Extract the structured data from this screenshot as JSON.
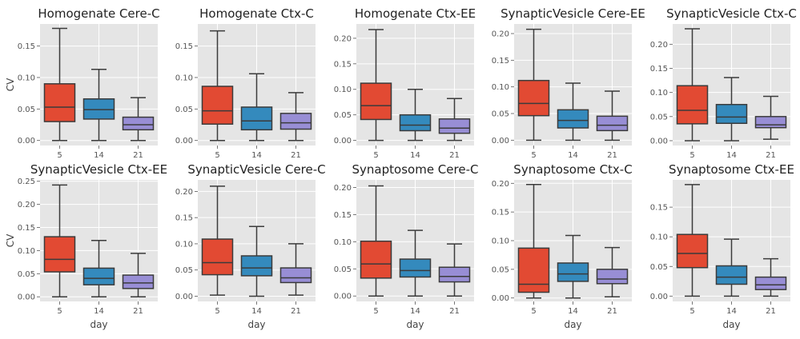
{
  "colors": {
    "day5": "#E24A33",
    "day14": "#348ABD",
    "day21": "#988ED5",
    "panel_bg": "#E5E5E5",
    "grid": "#FFFFFF",
    "whisker": "#3B3B3B"
  },
  "chart_data": [
    {
      "type": "box",
      "title": "Homogenate Cere-C",
      "xlabel": "",
      "ylabel": "CV",
      "categories": [
        "5",
        "14",
        "21"
      ],
      "ylim": [
        -0.008,
        0.185
      ],
      "yticks": [
        "0.00",
        "0.05",
        "0.10",
        "0.15"
      ],
      "boxes": [
        {
          "min": 0.0,
          "q1": 0.03,
          "median": 0.053,
          "q3": 0.09,
          "max": 0.178
        },
        {
          "min": 0.0,
          "q1": 0.034,
          "median": 0.049,
          "q3": 0.066,
          "max": 0.113
        },
        {
          "min": 0.0,
          "q1": 0.017,
          "median": 0.025,
          "q3": 0.037,
          "max": 0.068
        }
      ]
    },
    {
      "type": "box",
      "title": "Homogenate Ctx-C",
      "xlabel": "",
      "ylabel": "",
      "categories": [
        "5",
        "14",
        "21"
      ],
      "ylim": [
        -0.008,
        0.185
      ],
      "yticks": [
        "0.00",
        "0.05",
        "0.10",
        "0.15"
      ],
      "boxes": [
        {
          "min": 0.0,
          "q1": 0.026,
          "median": 0.047,
          "q3": 0.086,
          "max": 0.174
        },
        {
          "min": 0.0,
          "q1": 0.017,
          "median": 0.031,
          "q3": 0.053,
          "max": 0.106
        },
        {
          "min": 0.0,
          "q1": 0.018,
          "median": 0.028,
          "q3": 0.043,
          "max": 0.076
        }
      ]
    },
    {
      "type": "box",
      "title": "Homogenate Ctx-EE",
      "xlabel": "",
      "ylabel": "",
      "categories": [
        "5",
        "14",
        "21"
      ],
      "ylim": [
        -0.01,
        0.228
      ],
      "yticks": [
        "0.00",
        "0.05",
        "0.10",
        "0.15",
        "0.20"
      ],
      "boxes": [
        {
          "min": 0.0,
          "q1": 0.041,
          "median": 0.068,
          "q3": 0.112,
          "max": 0.217
        },
        {
          "min": 0.0,
          "q1": 0.019,
          "median": 0.03,
          "q3": 0.05,
          "max": 0.1
        },
        {
          "min": 0.0,
          "q1": 0.014,
          "median": 0.024,
          "q3": 0.042,
          "max": 0.082
        }
      ]
    },
    {
      "type": "box",
      "title": "SynapticVesicle Cere-EE",
      "xlabel": "",
      "ylabel": "",
      "categories": [
        "5",
        "14",
        "21"
      ],
      "ylim": [
        -0.01,
        0.218
      ],
      "yticks": [
        "0.00",
        "0.05",
        "0.10",
        "0.15",
        "0.20"
      ],
      "boxes": [
        {
          "min": 0.0,
          "q1": 0.046,
          "median": 0.069,
          "q3": 0.112,
          "max": 0.208
        },
        {
          "min": 0.0,
          "q1": 0.023,
          "median": 0.037,
          "q3": 0.057,
          "max": 0.107
        },
        {
          "min": 0.0,
          "q1": 0.018,
          "median": 0.028,
          "q3": 0.045,
          "max": 0.092
        }
      ]
    },
    {
      "type": "box",
      "title": "SynapticVesicle Ctx-C",
      "xlabel": "",
      "ylabel": "",
      "categories": [
        "5",
        "14",
        "21"
      ],
      "ylim": [
        -0.01,
        0.242
      ],
      "yticks": [
        "0.00",
        "0.05",
        "0.10",
        "0.15",
        "0.20"
      ],
      "boxes": [
        {
          "min": 0.0,
          "q1": 0.035,
          "median": 0.063,
          "q3": 0.114,
          "max": 0.232
        },
        {
          "min": 0.0,
          "q1": 0.036,
          "median": 0.049,
          "q3": 0.075,
          "max": 0.131
        },
        {
          "min": 0.003,
          "q1": 0.027,
          "median": 0.033,
          "q3": 0.05,
          "max": 0.092
        }
      ]
    },
    {
      "type": "box",
      "title": "SynapticVesicle Ctx-EE",
      "xlabel": "day",
      "ylabel": "CV",
      "categories": [
        "5",
        "14",
        "21"
      ],
      "ylim": [
        -0.01,
        0.253
      ],
      "yticks": [
        "0.00",
        "0.05",
        "0.10",
        "0.15",
        "0.20",
        "0.25"
      ],
      "boxes": [
        {
          "min": 0.0,
          "q1": 0.054,
          "median": 0.081,
          "q3": 0.13,
          "max": 0.242
        },
        {
          "min": 0.0,
          "q1": 0.026,
          "median": 0.04,
          "q3": 0.062,
          "max": 0.122
        },
        {
          "min": 0.0,
          "q1": 0.018,
          "median": 0.03,
          "q3": 0.047,
          "max": 0.094
        }
      ]
    },
    {
      "type": "box",
      "title": "SynapticVesicle Cere-C",
      "xlabel": "day",
      "ylabel": "",
      "categories": [
        "5",
        "14",
        "21"
      ],
      "ylim": [
        -0.01,
        0.222
      ],
      "yticks": [
        "0.00",
        "0.05",
        "0.10",
        "0.15",
        "0.20"
      ],
      "boxes": [
        {
          "min": 0.002,
          "q1": 0.041,
          "median": 0.064,
          "q3": 0.109,
          "max": 0.21
        },
        {
          "min": 0.0,
          "q1": 0.039,
          "median": 0.054,
          "q3": 0.077,
          "max": 0.133
        },
        {
          "min": 0.002,
          "q1": 0.026,
          "median": 0.035,
          "q3": 0.054,
          "max": 0.1
        }
      ]
    },
    {
      "type": "box",
      "title": "Synaptosome Cere-C",
      "xlabel": "day",
      "ylabel": "",
      "categories": [
        "5",
        "14",
        "21"
      ],
      "ylim": [
        -0.01,
        0.214
      ],
      "yticks": [
        "0.00",
        "0.05",
        "0.10",
        "0.15",
        "0.20"
      ],
      "boxes": [
        {
          "min": 0.0,
          "q1": 0.033,
          "median": 0.059,
          "q3": 0.101,
          "max": 0.203
        },
        {
          "min": 0.0,
          "q1": 0.035,
          "median": 0.047,
          "q3": 0.068,
          "max": 0.121
        },
        {
          "min": 0.0,
          "q1": 0.026,
          "median": 0.036,
          "q3": 0.053,
          "max": 0.096
        }
      ]
    },
    {
      "type": "box",
      "title": "Synaptosome Ctx-C",
      "xlabel": "day",
      "ylabel": "",
      "categories": [
        "5",
        "14",
        "21"
      ],
      "ylim": [
        -0.006,
        0.206
      ],
      "yticks": [
        "0.00",
        "0.05",
        "0.10",
        "0.15",
        "0.20"
      ],
      "boxes": [
        {
          "min": 0.0,
          "q1": 0.01,
          "median": 0.024,
          "q3": 0.087,
          "max": 0.198
        },
        {
          "min": 0.0,
          "q1": 0.029,
          "median": 0.042,
          "q3": 0.061,
          "max": 0.109
        },
        {
          "min": 0.002,
          "q1": 0.025,
          "median": 0.033,
          "q3": 0.05,
          "max": 0.088
        }
      ]
    },
    {
      "type": "box",
      "title": "Synaptosome Ctx-EE",
      "xlabel": "day",
      "ylabel": "",
      "categories": [
        "5",
        "14",
        "21"
      ],
      "ylim": [
        -0.009,
        0.196
      ],
      "yticks": [
        "0.00",
        "0.05",
        "0.10",
        "0.15"
      ],
      "boxes": [
        {
          "min": 0.0,
          "q1": 0.048,
          "median": 0.072,
          "q3": 0.104,
          "max": 0.188
        },
        {
          "min": 0.0,
          "q1": 0.02,
          "median": 0.032,
          "q3": 0.051,
          "max": 0.096
        },
        {
          "min": 0.0,
          "q1": 0.011,
          "median": 0.019,
          "q3": 0.032,
          "max": 0.063
        }
      ]
    }
  ]
}
